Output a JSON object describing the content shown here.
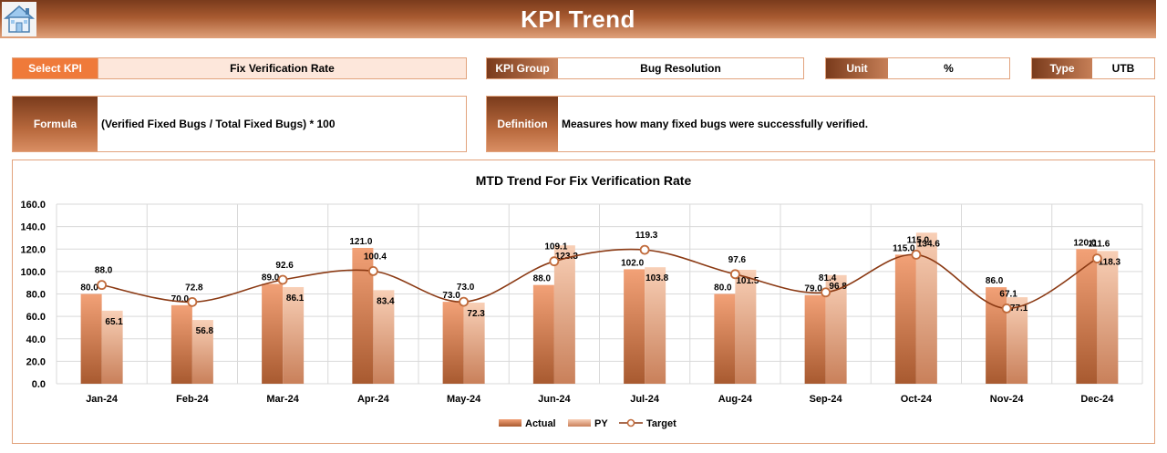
{
  "header": {
    "title": "KPI Trend",
    "home_icon": "home-icon"
  },
  "fields": {
    "select_kpi": {
      "label": "Select KPI",
      "value": "Fix Verification Rate"
    },
    "kpi_group": {
      "label": "KPI Group",
      "value": "Bug Resolution"
    },
    "unit": {
      "label": "Unit",
      "value": "%"
    },
    "type": {
      "label": "Type",
      "value": "UTB"
    },
    "formula": {
      "label": "Formula",
      "value": "(Verified Fixed Bugs / Total Fixed Bugs) * 100"
    },
    "definition": {
      "label": "Definition",
      "value": "Measures how many fixed bugs were successfully verified."
    }
  },
  "colors": {
    "actual": "#d9875a",
    "py": "#f0c3a6",
    "target": "#8b3a14",
    "border": "#e2a37d"
  },
  "chart_data": {
    "type": "bar",
    "title": "MTD Trend For Fix Verification Rate",
    "categories": [
      "Jan-24",
      "Feb-24",
      "Mar-24",
      "Apr-24",
      "May-24",
      "Jun-24",
      "Jul-24",
      "Aug-24",
      "Sep-24",
      "Oct-24",
      "Nov-24",
      "Dec-24"
    ],
    "series": [
      {
        "name": "Actual",
        "type": "bar",
        "values": [
          80.0,
          70.0,
          89.0,
          121.0,
          73.0,
          88.0,
          102.0,
          80.0,
          79.0,
          115.0,
          86.0,
          120.0
        ]
      },
      {
        "name": "PY",
        "type": "bar",
        "values": [
          65.1,
          56.8,
          86.1,
          83.4,
          72.3,
          123.3,
          103.8,
          101.5,
          96.8,
          134.6,
          77.1,
          118.3
        ]
      },
      {
        "name": "Target",
        "type": "line",
        "values": [
          88.0,
          72.8,
          92.6,
          100.4,
          73.0,
          109.1,
          119.3,
          97.6,
          81.4,
          115.0,
          67.1,
          111.6
        ]
      }
    ],
    "ylim": [
      0,
      160
    ],
    "yticks": [
      "0.0",
      "20.0",
      "40.0",
      "60.0",
      "80.0",
      "100.0",
      "120.0",
      "140.0",
      "160.0"
    ],
    "grid": true,
    "legend": "bottom"
  }
}
